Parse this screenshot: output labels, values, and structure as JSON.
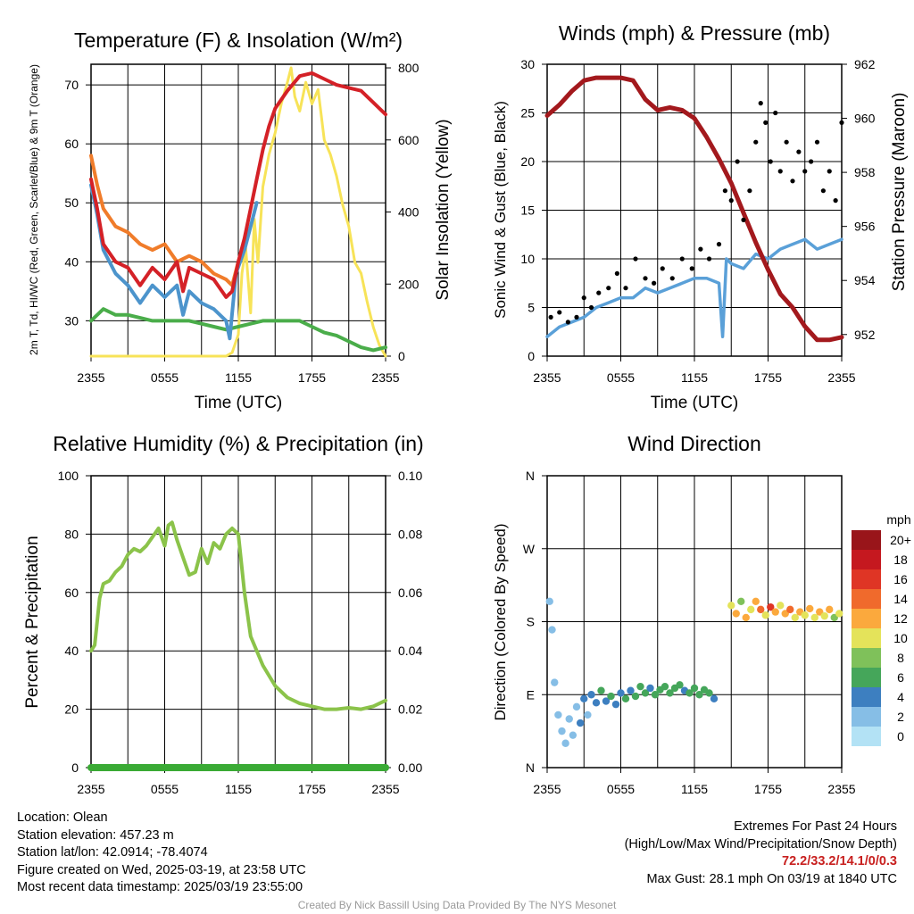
{
  "footer": {
    "location": "Location: Olean",
    "elevation": "Station elevation: 457.23 m",
    "latlon": "Station lat/lon: 42.0914; -78.4074",
    "created": "Figure created on Wed, 2025-03-19, at 23:58 UTC",
    "recent": "Most recent data timestamp: 2025/03/19 23:55:00",
    "extremes_title": "Extremes For Past 24 Hours",
    "extremes_legend": "(High/Low/Max Wind/Precipitation/Snow Depth)",
    "extremes_values": "72.2/33.2/14.1/0/0.3",
    "max_gust": "Max Gust: 28.1 mph On 03/19 at 1840 UTC",
    "credit": "Created By Nick Bassill Using Data Provided By The NYS Mesonet"
  },
  "colors": {
    "temperature": "#d42127",
    "dewpoint": "#4aad4a",
    "feels_like": "#4c94cc",
    "temp_9m": "#f07c2a",
    "insolation": "#f7e358",
    "sonic_wind": "#5aa0d8",
    "gust": "#000000",
    "pressure": "#a3191d",
    "humidity": "#8bc34a",
    "precip": "#3aaa35"
  },
  "chart_data": [
    {
      "type": "line",
      "title": "Temperature (F) & Insolation (W/m²)",
      "xlabel": "Time (UTC)",
      "ylabel": "2m T, Td, HI/WC (Red, Green, Scarlet/Blue) & 9m T (Orange)",
      "y2label": "Solar Insolation (Yellow)",
      "x_ticks": [
        "2355",
        "0555",
        "1155",
        "1755",
        "2355"
      ],
      "y_ticks": [
        30,
        40,
        50,
        60,
        70
      ],
      "y2_ticks": [
        0,
        200,
        400,
        600,
        800
      ],
      "ylim": [
        24,
        73.5
      ],
      "y2lim": [
        0,
        810
      ],
      "xlim": [
        0,
        24
      ],
      "series": [
        {
          "name": "2m T",
          "axis": "left",
          "x": [
            0,
            0.5,
            1,
            2,
            3,
            4,
            5,
            6,
            7,
            7.5,
            8,
            9,
            10,
            11,
            11.5,
            12,
            12.5,
            13,
            13.5,
            14,
            14.5,
            15,
            16,
            17,
            18,
            19,
            20,
            21,
            22,
            23,
            24
          ],
          "y": [
            54,
            49,
            43,
            40,
            39,
            36,
            39,
            37,
            40,
            35,
            39,
            38,
            37,
            34,
            35,
            40,
            44,
            49,
            54,
            59,
            63,
            66,
            69,
            71.5,
            72,
            71,
            70,
            69.5,
            69,
            67,
            65
          ]
        },
        {
          "name": "2m Td",
          "axis": "left",
          "x": [
            0,
            1,
            2,
            3,
            4,
            5,
            6,
            7,
            8,
            9,
            10,
            11,
            12,
            13,
            14,
            15,
            16,
            17,
            18,
            19,
            20,
            21,
            22,
            23,
            24
          ],
          "y": [
            30,
            32,
            31,
            31,
            30.5,
            30,
            30,
            30,
            30,
            29.5,
            29,
            28.5,
            29,
            29.5,
            30,
            30,
            30,
            30,
            29,
            28,
            27.5,
            26.5,
            25.5,
            25,
            25.5
          ]
        },
        {
          "name": "HI/WC",
          "axis": "left",
          "x": [
            0,
            0.5,
            1,
            2,
            3,
            4,
            5,
            6,
            7,
            7.5,
            8,
            9,
            10,
            11,
            11.3,
            11.8,
            12.5,
            13,
            13.5
          ],
          "y": [
            53,
            48,
            42,
            38,
            36,
            33,
            36,
            34,
            36,
            31,
            35,
            33,
            32,
            30,
            27,
            38,
            42,
            46,
            50
          ]
        },
        {
          "name": "9m T",
          "axis": "left",
          "x": [
            0,
            0.5,
            1,
            2,
            3,
            4,
            5,
            6,
            7,
            8,
            9,
            10,
            11,
            11.5,
            12,
            12.5
          ],
          "y": [
            58,
            53,
            49,
            46,
            45,
            43,
            42,
            43,
            40,
            41,
            40,
            38,
            37,
            36,
            40,
            43
          ]
        },
        {
          "name": "Solar Insolation",
          "axis": "right",
          "x": [
            0,
            11,
            11.5,
            12,
            12.3,
            12.6,
            13,
            13.3,
            13.6,
            14,
            14.5,
            15,
            15.5,
            16,
            16.3,
            16.6,
            17,
            17.5,
            18,
            18.5,
            19,
            19.5,
            20,
            20.5,
            21,
            21.5,
            22,
            22.5,
            23,
            23.5,
            24
          ],
          "y": [
            0,
            0,
            10,
            60,
            230,
            300,
            120,
            380,
            260,
            470,
            560,
            620,
            700,
            760,
            800,
            720,
            680,
            760,
            700,
            740,
            600,
            560,
            500,
            420,
            360,
            260,
            230,
            150,
            80,
            30,
            0
          ]
        }
      ]
    },
    {
      "type": "line",
      "title": "Winds (mph) & Pressure (mb)",
      "xlabel": "Time (UTC)",
      "ylabel": "Sonic Wind & Gust (Blue, Black)",
      "y2label": "Station Pressure (Maroon)",
      "x_ticks": [
        "2355",
        "0555",
        "1155",
        "1755",
        "2355"
      ],
      "y_ticks": [
        0,
        5,
        10,
        15,
        20,
        25,
        30
      ],
      "y2_ticks": [
        952,
        954,
        956,
        958,
        960,
        962
      ],
      "ylim": [
        0,
        30
      ],
      "y2lim": [
        951.2,
        962
      ],
      "xlim": [
        0,
        24
      ],
      "series": [
        {
          "name": "Sonic Wind",
          "axis": "left",
          "x": [
            0,
            1,
            2,
            3,
            4,
            5,
            6,
            7,
            8,
            9,
            10,
            11,
            12,
            13,
            14,
            14.3,
            14.6,
            15,
            16,
            17,
            18,
            19,
            20,
            21,
            22,
            23,
            24
          ],
          "y": [
            2,
            3,
            3.5,
            4,
            5,
            5.5,
            6,
            6,
            7,
            6.5,
            7,
            7.5,
            8,
            8,
            7.5,
            2,
            10,
            9.5,
            9,
            10.5,
            10,
            11,
            11.5,
            12,
            11,
            11.5,
            12
          ]
        },
        {
          "name": "Gust",
          "axis": "left",
          "style": "points",
          "x": [
            0.3,
            1,
            1.7,
            2.4,
            3,
            3.6,
            4.2,
            5,
            5.7,
            6.4,
            7.2,
            8,
            8.7,
            9.4,
            10.2,
            11,
            11.8,
            12.5,
            13.2,
            14,
            14.5,
            15,
            15.5,
            16,
            16.5,
            17,
            17.4,
            17.8,
            18.2,
            18.6,
            19,
            19.5,
            20,
            20.5,
            21,
            21.5,
            22,
            22.5,
            23,
            23.5,
            24
          ],
          "y": [
            4,
            4.5,
            3.5,
            4,
            6,
            5,
            6.5,
            7,
            8.5,
            7,
            10,
            8,
            7.5,
            9,
            8,
            10,
            9,
            11,
            10,
            11.5,
            17,
            16,
            20,
            14,
            17,
            22,
            26,
            24,
            20,
            25,
            19,
            22,
            18,
            21,
            19,
            20,
            22,
            17,
            19,
            16,
            24
          ]
        },
        {
          "name": "Station Pressure",
          "axis": "right",
          "x": [
            0,
            1,
            2,
            3,
            4,
            5,
            6,
            7,
            8,
            9,
            10,
            11,
            12,
            13,
            14,
            15,
            16,
            17,
            18,
            19,
            20,
            21,
            22,
            23,
            24
          ],
          "y": [
            960.1,
            960.5,
            961.0,
            961.4,
            961.5,
            961.5,
            961.5,
            961.4,
            960.7,
            960.3,
            960.4,
            960.3,
            960.0,
            959.3,
            958.5,
            957.6,
            956.5,
            955.4,
            954.4,
            953.5,
            953.0,
            952.3,
            951.8,
            951.8,
            951.9
          ]
        }
      ]
    },
    {
      "type": "line",
      "title": "Relative Humidity (%) & Precipitation (in)",
      "xlabel": "",
      "ylabel": "Percent & Precipitation",
      "x_ticks": [
        "2355",
        "0555",
        "1155",
        "1755",
        "2355"
      ],
      "y_ticks": [
        0,
        20,
        40,
        60,
        80,
        100
      ],
      "y2_ticks": [
        "0.00",
        "0.02",
        "0.04",
        "0.06",
        "0.08",
        "0.10"
      ],
      "ylim": [
        0,
        100
      ],
      "y2lim": [
        0,
        0.1
      ],
      "xlim": [
        0,
        24
      ],
      "series": [
        {
          "name": "Relative Humidity",
          "axis": "left",
          "x": [
            0,
            0.3,
            0.7,
            1,
            1.5,
            2,
            2.5,
            3,
            3.5,
            4,
            4.5,
            5,
            5.5,
            6,
            6.3,
            6.6,
            7,
            7.5,
            8,
            8.5,
            9,
            9.5,
            10,
            10.5,
            11,
            11.5,
            12,
            12.5,
            13,
            14,
            15,
            16,
            17,
            18,
            19,
            20,
            21,
            22,
            23,
            24
          ],
          "y": [
            40,
            42,
            58,
            63,
            64,
            67,
            69,
            73,
            75,
            74,
            76,
            79,
            82,
            76,
            83,
            84,
            78,
            72,
            66,
            67,
            75,
            70,
            77,
            75,
            80,
            82,
            80,
            60,
            45,
            35,
            28,
            24,
            22,
            21,
            20,
            20,
            20.5,
            20,
            21,
            23
          ]
        },
        {
          "name": "Precipitation",
          "axis": "right",
          "x": [
            0,
            24
          ],
          "y": [
            0,
            0
          ]
        }
      ]
    },
    {
      "type": "scatter",
      "title": "Wind Direction",
      "xlabel": "",
      "ylabel": "Direction (Colored By Speed)",
      "x_ticks": [
        "2355",
        "0555",
        "1155",
        "1755",
        "2355"
      ],
      "y_ticks": [
        "N",
        "E",
        "S",
        "W",
        "N"
      ],
      "ylim": [
        0,
        360
      ],
      "xlim": [
        0,
        24
      ],
      "colorbar": {
        "title": "mph",
        "labels": [
          "0",
          "2",
          "4",
          "6",
          "8",
          "10",
          "12",
          "14",
          "16",
          "18",
          "20+"
        ],
        "colors": [
          "#b3e2f5",
          "#86bee6",
          "#3d7fc0",
          "#45a65a",
          "#7fc15a",
          "#e4e35a",
          "#fba93d",
          "#f06a2c",
          "#df3525",
          "#c5181f",
          "#99151a"
        ]
      },
      "points": [
        {
          "x": 0.2,
          "y": 205,
          "speed": 2
        },
        {
          "x": 0.4,
          "y": 170,
          "speed": 1
        },
        {
          "x": 0.6,
          "y": 105,
          "speed": 1
        },
        {
          "x": 0.9,
          "y": 65,
          "speed": 2
        },
        {
          "x": 1.2,
          "y": 45,
          "speed": 1
        },
        {
          "x": 1.5,
          "y": 30,
          "speed": 2
        },
        {
          "x": 1.8,
          "y": 60,
          "speed": 2
        },
        {
          "x": 2.1,
          "y": 40,
          "speed": 1
        },
        {
          "x": 2.4,
          "y": 75,
          "speed": 2
        },
        {
          "x": 2.7,
          "y": 55,
          "speed": 3
        },
        {
          "x": 3,
          "y": 85,
          "speed": 3
        },
        {
          "x": 3.3,
          "y": 65,
          "speed": 2
        },
        {
          "x": 3.6,
          "y": 90,
          "speed": 4
        },
        {
          "x": 4,
          "y": 80,
          "speed": 4
        },
        {
          "x": 4.4,
          "y": 95,
          "speed": 5
        },
        {
          "x": 4.8,
          "y": 82,
          "speed": 4
        },
        {
          "x": 5.2,
          "y": 88,
          "speed": 5
        },
        {
          "x": 5.6,
          "y": 78,
          "speed": 3
        },
        {
          "x": 6,
          "y": 92,
          "speed": 4
        },
        {
          "x": 6.4,
          "y": 85,
          "speed": 5
        },
        {
          "x": 6.8,
          "y": 95,
          "speed": 4
        },
        {
          "x": 7.2,
          "y": 88,
          "speed": 6
        },
        {
          "x": 7.6,
          "y": 100,
          "speed": 5
        },
        {
          "x": 8,
          "y": 92,
          "speed": 6
        },
        {
          "x": 8.4,
          "y": 98,
          "speed": 4
        },
        {
          "x": 8.8,
          "y": 90,
          "speed": 5
        },
        {
          "x": 9.2,
          "y": 96,
          "speed": 6
        },
        {
          "x": 9.6,
          "y": 100,
          "speed": 5
        },
        {
          "x": 10,
          "y": 92,
          "speed": 6
        },
        {
          "x": 10.4,
          "y": 98,
          "speed": 5
        },
        {
          "x": 10.8,
          "y": 102,
          "speed": 6
        },
        {
          "x": 11.2,
          "y": 95,
          "speed": 4
        },
        {
          "x": 11.6,
          "y": 92,
          "speed": 6
        },
        {
          "x": 12,
          "y": 98,
          "speed": 5
        },
        {
          "x": 12.4,
          "y": 90,
          "speed": 6
        },
        {
          "x": 12.8,
          "y": 96,
          "speed": 5
        },
        {
          "x": 13.2,
          "y": 92,
          "speed": 6
        },
        {
          "x": 13.6,
          "y": 85,
          "speed": 3
        },
        {
          "x": 15,
          "y": 200,
          "speed": 10
        },
        {
          "x": 15.4,
          "y": 190,
          "speed": 12
        },
        {
          "x": 15.8,
          "y": 205,
          "speed": 8
        },
        {
          "x": 16.2,
          "y": 185,
          "speed": 11
        },
        {
          "x": 16.6,
          "y": 195,
          "speed": 9
        },
        {
          "x": 17,
          "y": 205,
          "speed": 12
        },
        {
          "x": 17.4,
          "y": 195,
          "speed": 14
        },
        {
          "x": 17.8,
          "y": 188,
          "speed": 10
        },
        {
          "x": 18.2,
          "y": 198,
          "speed": 15
        },
        {
          "x": 18.6,
          "y": 192,
          "speed": 12
        },
        {
          "x": 19,
          "y": 200,
          "speed": 9
        },
        {
          "x": 19.4,
          "y": 190,
          "speed": 11
        },
        {
          "x": 19.8,
          "y": 195,
          "speed": 13
        },
        {
          "x": 20.2,
          "y": 185,
          "speed": 10
        },
        {
          "x": 20.6,
          "y": 192,
          "speed": 12
        },
        {
          "x": 21,
          "y": 188,
          "speed": 9
        },
        {
          "x": 21.4,
          "y": 196,
          "speed": 11
        },
        {
          "x": 21.8,
          "y": 185,
          "speed": 10
        },
        {
          "x": 22.2,
          "y": 192,
          "speed": 12
        },
        {
          "x": 22.6,
          "y": 187,
          "speed": 10
        },
        {
          "x": 23,
          "y": 195,
          "speed": 11
        },
        {
          "x": 23.4,
          "y": 185,
          "speed": 7
        },
        {
          "x": 23.8,
          "y": 190,
          "speed": 10
        }
      ]
    }
  ]
}
